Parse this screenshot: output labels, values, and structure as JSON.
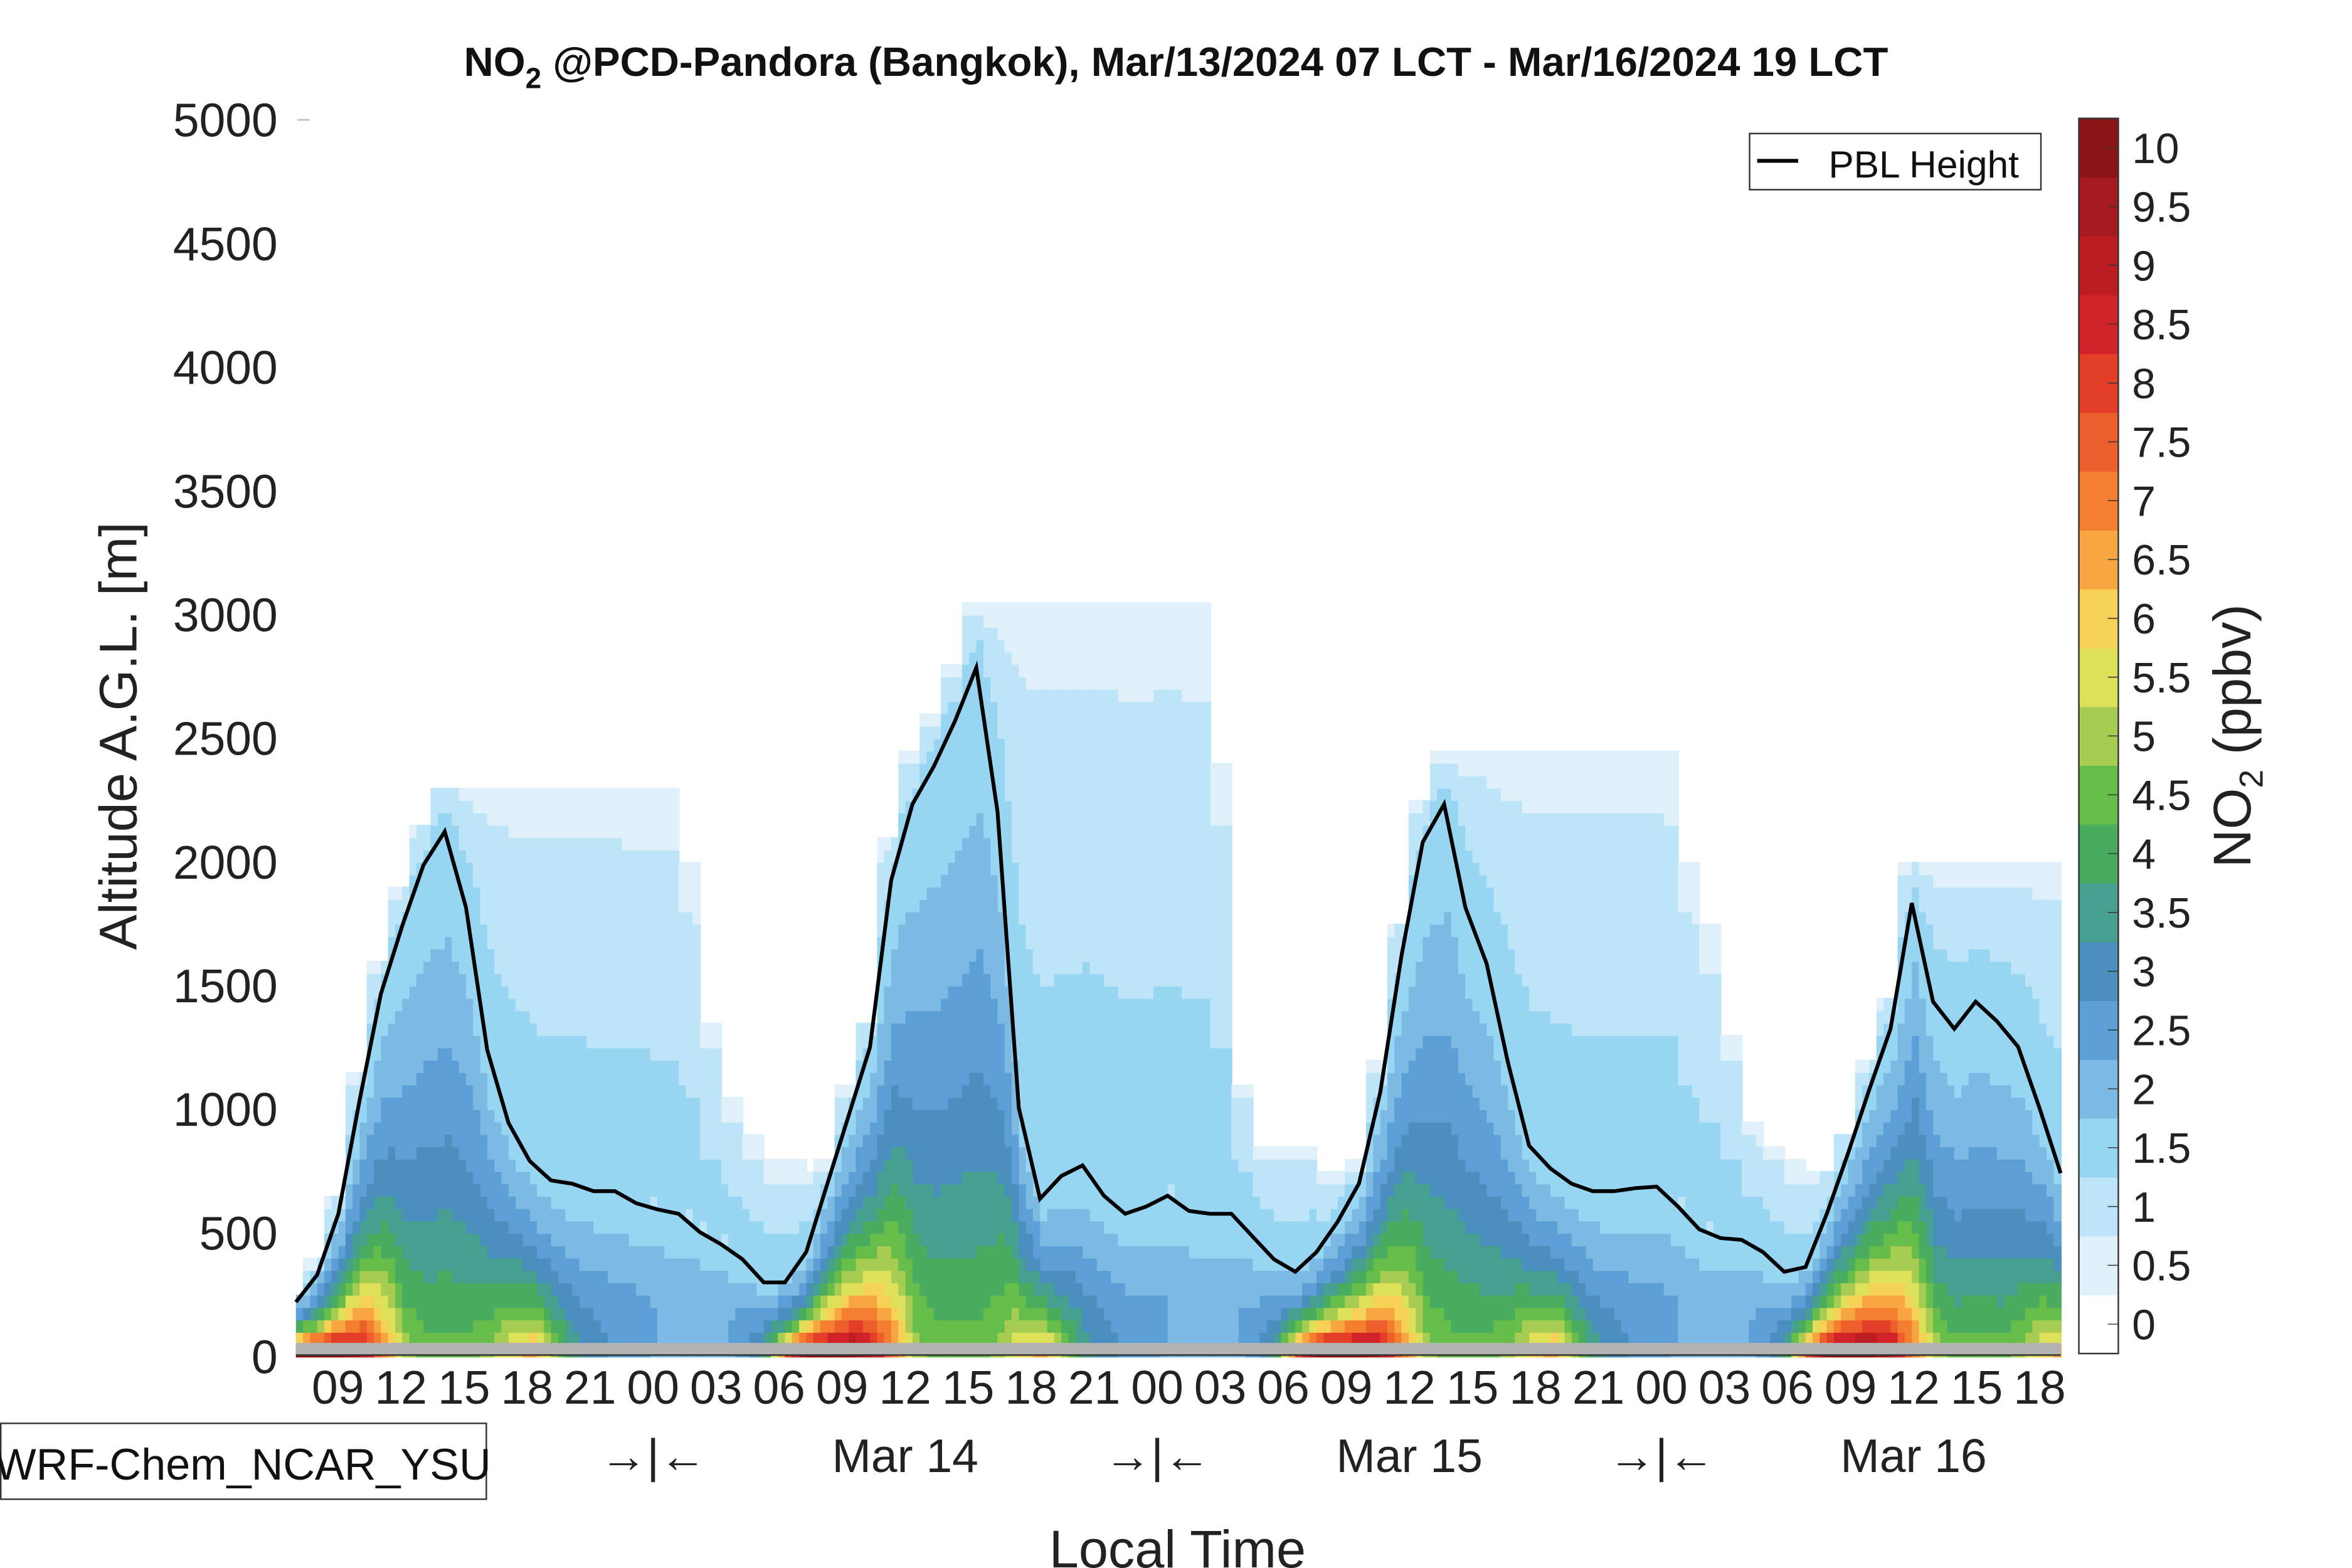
{
  "title": {
    "prefix": "NO",
    "sub": "2",
    "rest": " @PCD-Pandora (Bangkok), Mar/13/2024 07 LCT - Mar/16/2024 19 LCT"
  },
  "chart_data": {
    "type": "heatmap",
    "title": "NO2 @PCD-Pandora (Bangkok), Mar/13/2024 07 LCT - Mar/16/2024 19 LCT",
    "xlabel": "Local Time",
    "ylabel": "Altitude A.G.L. [m]",
    "ylim": [
      0,
      5000
    ],
    "yticks": [
      "0",
      "500",
      "1000",
      "1500",
      "2000",
      "2500",
      "3000",
      "3500",
      "4000",
      "4500",
      "5000"
    ],
    "x_start": "Mar/13/2024 07 LCT",
    "x_hours": 84,
    "xtick_labels": [
      "09",
      "12",
      "15",
      "18",
      "21",
      "00",
      "03",
      "06",
      "09",
      "12",
      "15",
      "18",
      "21",
      "00",
      "03",
      "06",
      "09",
      "12",
      "15",
      "18",
      "21",
      "00",
      "03",
      "06",
      "09",
      "12",
      "15",
      "18"
    ],
    "day_labels": [
      {
        "hour": 17,
        "label": "→|←"
      },
      {
        "hour": 29,
        "label": "Mar 14"
      },
      {
        "hour": 41,
        "label": "→|←"
      },
      {
        "hour": 53,
        "label": "Mar 15"
      },
      {
        "hour": 65,
        "label": "→|←"
      },
      {
        "hour": 77,
        "label": "Mar 16"
      }
    ],
    "model_label": "WRF-Chem_NCAR_YSU",
    "legend": {
      "label": "PBL Height",
      "placement": "top-right"
    },
    "pbl_height_m": [
      220,
      330,
      577,
      1037,
      1466,
      1742,
      1988,
      2123,
      1816,
      1239,
      945,
      791,
      712,
      699,
      669,
      669,
      620,
      595,
      577,
      503,
      454,
      393,
      300,
      300,
      423,
      700,
      975,
      1250,
      1926,
      2233,
      2386,
      2570,
      2785,
      2202,
      1006,
      638,
      730,
      773,
      650,
      577,
      607,
      650,
      589,
      577,
      577,
      485,
      393,
      343,
      423,
      546,
      700,
      1068,
      1620,
      2080,
      2233,
      1816,
      1589,
      1190,
      853,
      761,
      699,
      669,
      669,
      681,
      687,
      607,
      515,
      479,
      472,
      423,
      343,
      362,
      577,
      822,
      1080,
      1325,
      1834,
      1435,
      1325,
      1435,
      1356,
      1252,
      1006,
      742
    ],
    "surface_no2_ppbv": [
      10,
      10,
      10,
      9,
      7,
      5,
      4.5,
      4.5,
      4.5,
      5,
      6,
      6.5,
      5,
      3.5,
      3,
      2.5,
      2.5,
      2,
      2,
      2,
      2,
      2.5,
      4,
      8,
      10,
      10,
      10,
      9,
      7,
      5,
      4.5,
      4.5,
      4.5,
      5,
      6,
      6.5,
      5,
      3.5,
      3,
      2.5,
      2.5,
      2,
      2,
      2,
      2,
      2.5,
      4,
      8,
      10,
      10,
      10,
      9,
      7,
      5,
      4.5,
      4.5,
      4.5,
      5,
      6,
      6.5,
      5,
      3.5,
      3,
      2.5,
      2.5,
      2,
      2,
      2,
      2,
      2.5,
      4,
      8,
      10,
      10,
      10,
      9,
      7,
      5,
      4.5,
      4.5,
      4.5,
      5,
      6,
      6.5
    ],
    "colorbar": {
      "label_prefix": "NO",
      "label_sub": "2",
      "label_rest": " (ppbv)",
      "labels": [
        "0",
        "0.5",
        "1",
        "1.5",
        "2",
        "2.5",
        "3",
        "3.5",
        "4",
        "4.5",
        "5",
        "5.5",
        "6",
        "6.5",
        "7",
        "7.5",
        "8",
        "8.5",
        "9",
        "9.5",
        "10"
      ],
      "colors": [
        "#ffffff",
        "#dff0fa",
        "#bde5f7",
        "#98d5f3",
        "#7cb9e3",
        "#5b9fd6",
        "#4a8fbd",
        "#46a08f",
        "#4aac5f",
        "#66bd4a",
        "#a6cd52",
        "#dfe05a",
        "#f7d155",
        "#f7a540",
        "#f47e30",
        "#ec5e2b",
        "#e23e28",
        "#d12228",
        "#bb1d23",
        "#a6191f",
        "#8c1519"
      ]
    },
    "ground_color": "#b3b3b3"
  }
}
